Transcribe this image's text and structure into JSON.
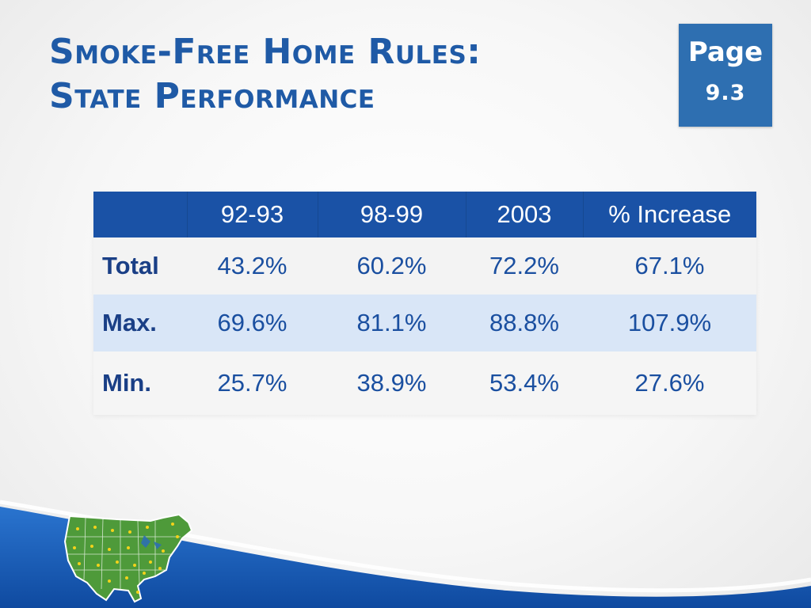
{
  "title": {
    "line1": "Smoke-Free Home Rules:",
    "line2": "State Performance"
  },
  "page_badge": {
    "word": "Page",
    "number": "9.3"
  },
  "table": {
    "columns": [
      "",
      "92-93",
      "98-99",
      "2003",
      "% Increase"
    ],
    "rows": [
      {
        "label": "Total",
        "values": [
          "43.2%",
          "60.2%",
          "72.2%",
          "67.1%"
        ]
      },
      {
        "label": "Max.",
        "values": [
          "69.6%",
          "81.1%",
          "88.8%",
          "107.9%"
        ]
      },
      {
        "label": "Min.",
        "values": [
          "25.7%",
          "38.9%",
          "53.4%",
          "27.6%"
        ]
      }
    ]
  },
  "colors": {
    "title": "#1f5aa6",
    "header_bg": "#1a52a6",
    "badge_bg": "#2e6fb1",
    "alt_row_bg": "#d9e6f7",
    "map_fill": "#4e9a3a",
    "wave_blue": "#1d5fb8"
  },
  "decoration": {
    "map_icon": "us-map-icon"
  }
}
